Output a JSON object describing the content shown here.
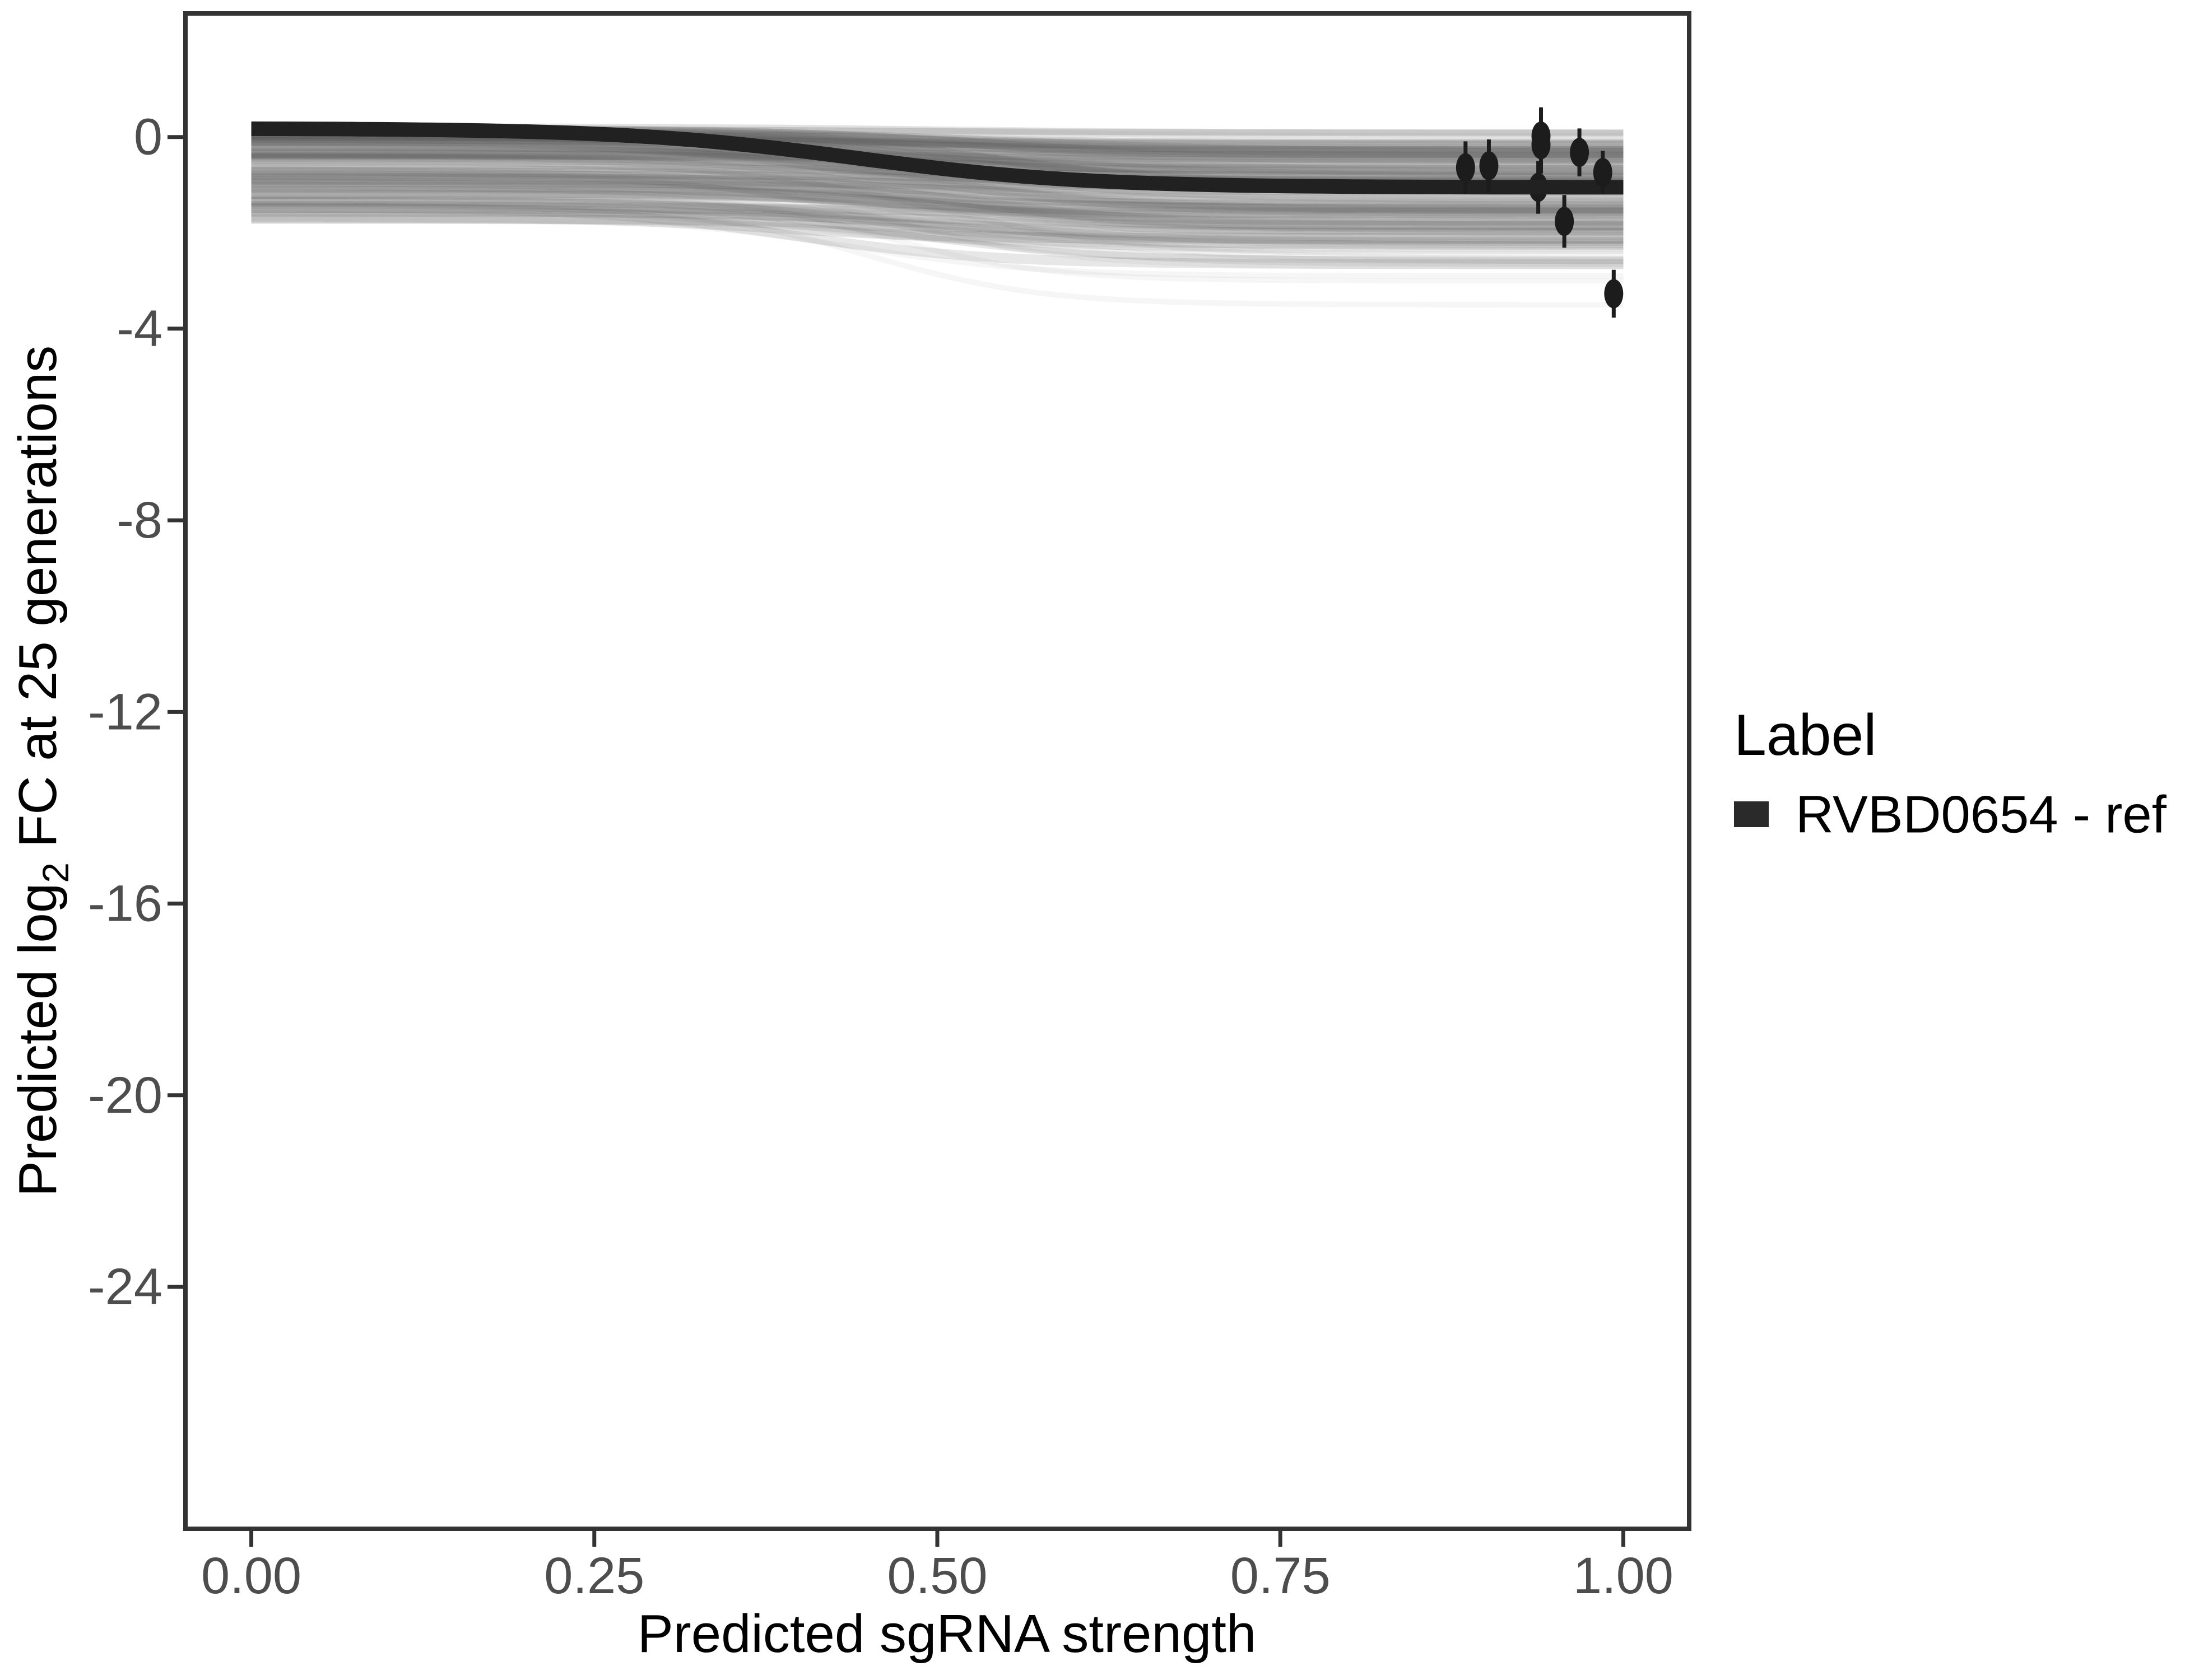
{
  "figure": {
    "background": "#ffffff"
  },
  "legend": {
    "title": "Label",
    "items": [
      {
        "label": "RVBD0654 - ref",
        "swatch_color": "#2a2a2a"
      }
    ]
  },
  "colors": {
    "panel_border": "#333333",
    "tick": "#333333",
    "tick_label": "#4d4d4d",
    "axis_title": "#000000",
    "ref_curve": "#212121",
    "point": "#1c1c1c",
    "ensemble": "#585858"
  },
  "chart_data": {
    "type": "line",
    "title": "",
    "xlabel": "Predicted sgRNA strength",
    "ylabel": {
      "pre": "Predicted  log",
      "sub": "2",
      "post": " FC at 25 generations"
    },
    "grid": false,
    "legend_position": "right",
    "xlim": [
      -0.048,
      1.048
    ],
    "ylim": [
      -29.05,
      2.58
    ],
    "x_ticks": [
      0,
      0.25,
      0.5,
      0.75,
      1.0
    ],
    "x_tick_labels": [
      "0.00",
      "0.25",
      "0.50",
      "0.75",
      "1.00"
    ],
    "y_ticks": [
      0,
      -4,
      -8,
      -12,
      -16,
      -20,
      -24
    ],
    "y_tick_labels": [
      "0",
      "-4",
      "-8",
      "-12",
      "-16",
      "-20",
      "-24"
    ],
    "series": [
      {
        "name": "RVBD0654 - ref",
        "shape": "sigmoid",
        "start": 0.18,
        "end": -1.05,
        "midpoint": 0.44,
        "steepness": 12,
        "width": 26
      }
    ],
    "ensemble": {
      "description": "posterior sample sigmoid curves, semi-transparent grey band from ~0.15 down to ~-2.8",
      "seed": 20,
      "count": 120,
      "start_max": 0.18,
      "start_spread": 1.9,
      "start_power": 1.7,
      "drop_min": 0.05,
      "drop_max": 1.2,
      "mid_min": 0.38,
      "mid_max": 0.56,
      "k_min": 9,
      "k_max": 17,
      "alpha_min": 0.05,
      "alpha_max": 0.16,
      "w_min": 9,
      "w_max": 22
    },
    "outlier_curves": [
      {
        "start": -0.55,
        "end": -2.45,
        "midpoint": 0.5,
        "steepness": 14,
        "alpha": 0.07,
        "width": 10
      },
      {
        "start": -0.85,
        "end": -2.7,
        "midpoint": 0.47,
        "steepness": 16,
        "alpha": 0.06,
        "width": 10
      },
      {
        "start": -1.15,
        "end": -3.0,
        "midpoint": 0.46,
        "steepness": 17,
        "alpha": 0.05,
        "width": 10
      },
      {
        "start": -1.45,
        "end": -3.5,
        "midpoint": 0.45,
        "steepness": 16,
        "alpha": 0.05,
        "width": 10
      },
      {
        "start": -1.7,
        "end": -2.9,
        "midpoint": 0.44,
        "steepness": 15,
        "alpha": 0.05,
        "width": 10
      }
    ],
    "points": [
      {
        "x": 0.885,
        "y": -0.64,
        "err": 0.55
      },
      {
        "x": 0.902,
        "y": -0.6,
        "err": 0.55
      },
      {
        "x": 0.94,
        "y": 0.02,
        "err": 0.6
      },
      {
        "x": 0.94,
        "y": -0.16,
        "err": 0.6
      },
      {
        "x": 0.938,
        "y": -1.05,
        "err": 0.55,
        "behind": true
      },
      {
        "x": 0.968,
        "y": -0.32,
        "err": 0.5
      },
      {
        "x": 0.985,
        "y": -0.74,
        "err": 0.45
      },
      {
        "x": 0.957,
        "y": -1.76,
        "err": 0.55
      },
      {
        "x": 0.993,
        "y": -3.27,
        "err": 0.5
      }
    ]
  }
}
